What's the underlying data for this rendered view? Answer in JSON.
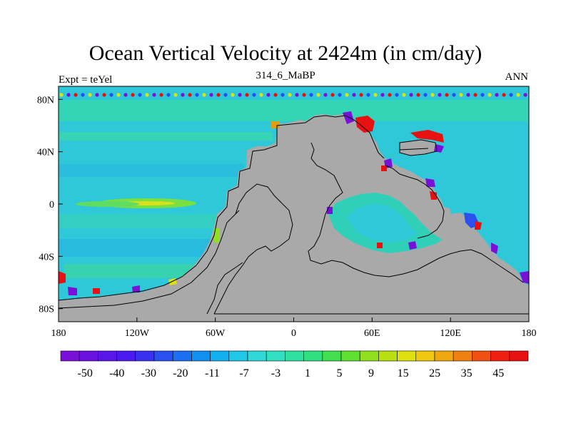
{
  "title": "Ocean Vertical Velocity at 2424m (in cm/day)",
  "subtitle_left": "Expt = teYel",
  "subtitle_center": "314_6_MaBP",
  "subtitle_right": "ANN",
  "map": {
    "lon_ticks": [
      "180",
      "120W",
      "60W",
      "0",
      "60E",
      "120E",
      "180"
    ],
    "lat_ticks": [
      "80N",
      "40N",
      "0",
      "40S",
      "80S"
    ],
    "land_color": "#a9a9a9",
    "ocean_base_color": "#2ec8d8"
  },
  "colorbar": {
    "labels": [
      "-50",
      "-40",
      "-30",
      "-20",
      "-11",
      "-7",
      "-3",
      "1",
      "5",
      "9",
      "15",
      "25",
      "35",
      "45"
    ],
    "colors": [
      "#7a10d8",
      "#6a12e0",
      "#5a16e8",
      "#4a1af0",
      "#3a30f2",
      "#2a50f0",
      "#1a70f0",
      "#1090f0",
      "#10b0f0",
      "#20c8e8",
      "#30d8d8",
      "#30e0c0",
      "#30e0a0",
      "#30e080",
      "#40e050",
      "#60e030",
      "#90e020",
      "#b8e010",
      "#e0e010",
      "#f0c810",
      "#f0a810",
      "#f08010",
      "#f05010",
      "#f02010",
      "#e81010"
    ]
  }
}
